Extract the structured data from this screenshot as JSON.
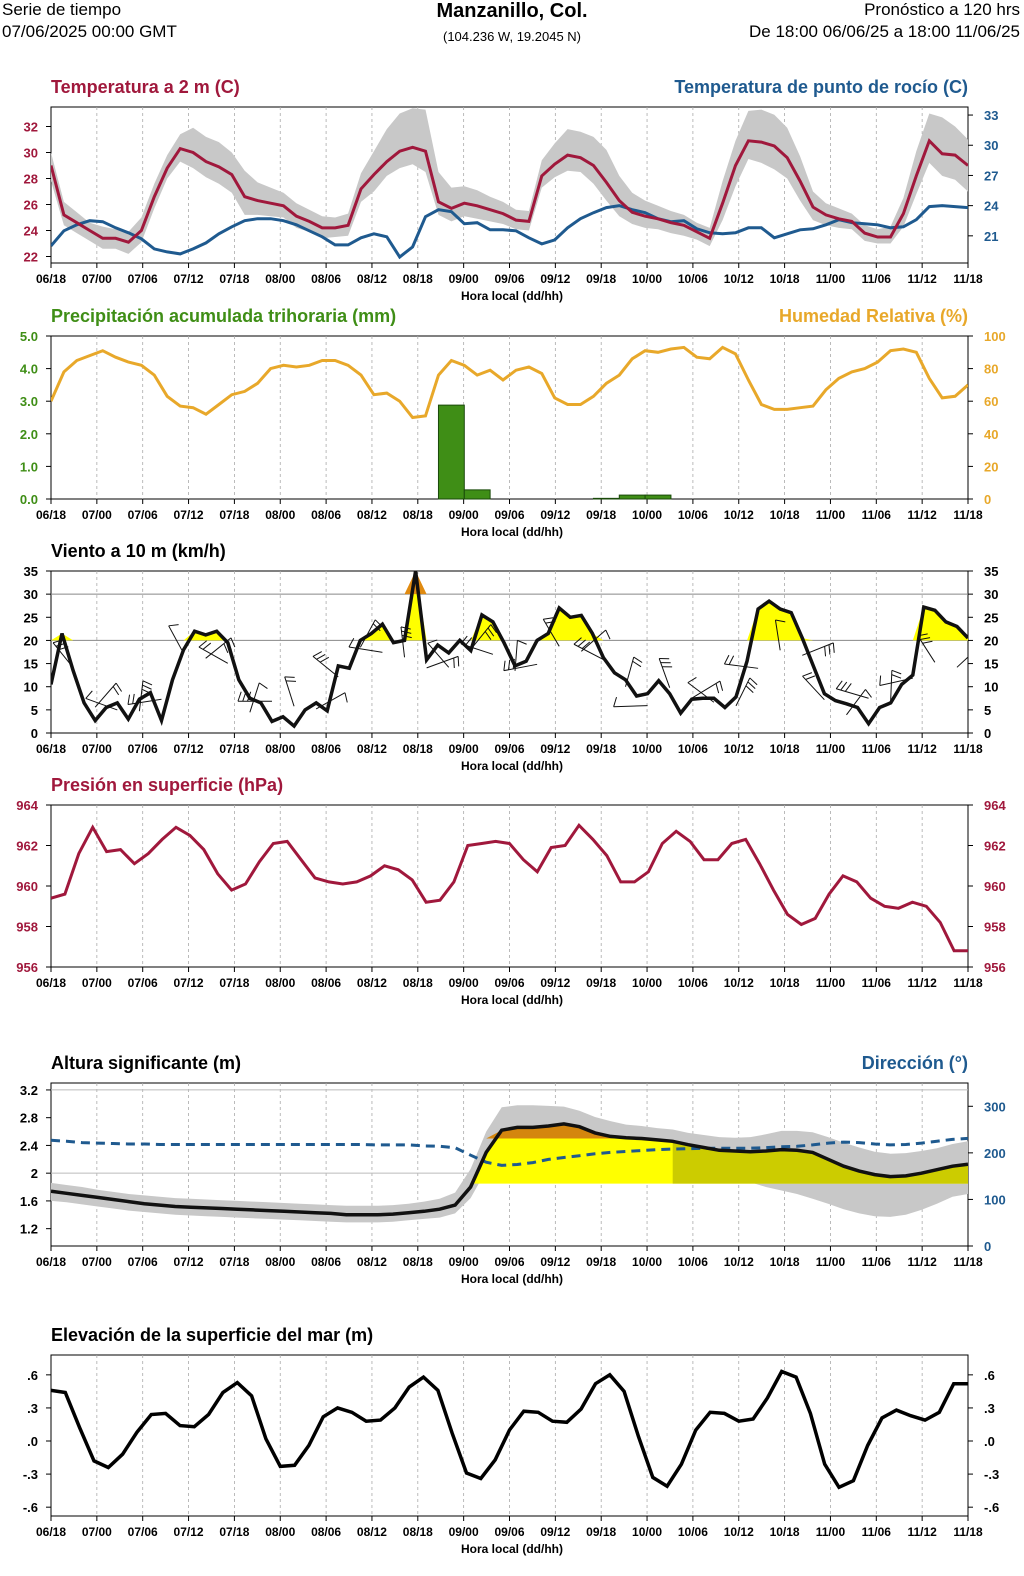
{
  "header": {
    "left_line1": "Serie de tiempo",
    "left_line2": "07/06/2025 00:00 GMT",
    "title": "Manzanillo, Col.",
    "coords": "(104.236 W, 19.2045 N)",
    "right_line1": "Pronóstico a 120 hrs",
    "right_line2": "De 18:00 06/06/25 a 18:00 11/06/25"
  },
  "x_axis": {
    "label": "Hora local (dd/hh)",
    "ticks": [
      "06/18",
      "07/00",
      "07/06",
      "07/12",
      "07/18",
      "08/00",
      "08/06",
      "08/12",
      "08/18",
      "09/00",
      "09/06",
      "09/12",
      "09/18",
      "10/00",
      "10/06",
      "10/12",
      "10/18",
      "11/00",
      "11/06",
      "11/12",
      "11/18"
    ]
  },
  "colors": {
    "temp": "#a0183c",
    "dew": "#1f5a8f",
    "precip": "#3f8e16",
    "rh": "#e8a82a",
    "wind": "#111111",
    "wind_fill": "#ffff00",
    "wind_fill_high": "#e08a10",
    "pressure": "#a0183c",
    "wave": "#111111",
    "wave_dir": "#1f5a8f",
    "band": "#c8c8c8",
    "wave_fill": "#ffff00",
    "wave_fill_high": "#d4860e",
    "wave_fill_olive": "#cccc00"
  },
  "chart_data": [
    {
      "id": "temp",
      "type": "line",
      "title_left": "Temperatura a 2 m (C)",
      "title_right": "Temperatura de punto de rocío (C)",
      "ylim": [
        21.5,
        33.5
      ],
      "yticks": [
        22,
        24,
        26,
        28,
        30,
        32
      ],
      "ylim_right": [
        18.3,
        33.8
      ],
      "yticks_right": [
        21,
        24,
        27,
        30,
        33
      ],
      "series": [
        {
          "name": "Temperatura a 2 m",
          "axis": "left",
          "values": [
            29,
            25.2,
            24.6,
            24,
            23.4,
            23.4,
            23.1,
            24,
            26.6,
            28.8,
            30.3,
            30,
            29.3,
            28.9,
            28.3,
            26.6,
            26.3,
            26.1,
            25.9,
            25.1,
            24.7,
            24.2,
            24.2,
            24.4,
            27.2,
            28.3,
            29.3,
            30.1,
            30.4,
            30.1,
            26.2,
            25.7,
            26.1,
            25.9,
            25.6,
            25.3,
            24.8,
            24.7,
            28.2,
            29.1,
            29.8,
            29.6,
            29,
            27.7,
            26.3,
            25.4,
            25.1,
            24.9,
            24.6,
            24.4,
            23.9,
            23.4,
            26.1,
            29,
            30.9,
            30.8,
            30.5,
            29.6,
            27.8,
            25.8,
            25.2,
            24.9,
            24.7,
            23.8,
            23.5,
            23.5,
            25.3,
            28.2,
            30.9,
            29.9,
            29.8,
            29
          ]
        },
        {
          "name": "Temperatura de punto de rocío",
          "axis": "right",
          "values": [
            20,
            21.5,
            22.1,
            22.5,
            22.4,
            21.8,
            21.3,
            20.7,
            19.7,
            19.4,
            19.2,
            19.7,
            20.3,
            21.2,
            21.9,
            22.5,
            22.7,
            22.7,
            22.5,
            22.1,
            21.5,
            20.9,
            20.1,
            20.1,
            20.8,
            21.2,
            20.9,
            18.9,
            19.9,
            22.9,
            23.6,
            23.4,
            22.2,
            22.3,
            21.6,
            21.6,
            21.5,
            20.8,
            20.2,
            20.6,
            21.8,
            22.7,
            23.3,
            23.8,
            24,
            23.6,
            23.3,
            22.7,
            22.4,
            22.5,
            21.7,
            21.3,
            21.2,
            21.3,
            21.8,
            21.8,
            20.8,
            21.2,
            21.6,
            21.7,
            22.1,
            22.6,
            22.3,
            22.2,
            22.1,
            21.8,
            21.9,
            22.6,
            23.9,
            24,
            23.9,
            23.8
          ]
        }
      ],
      "band": {
        "upper": [
          30,
          26.2,
          25.4,
          24.6,
          24.3,
          24.1,
          23.9,
          25,
          27.6,
          29.8,
          31.4,
          31.9,
          31.2,
          30.8,
          30,
          28.6,
          27.7,
          27.3,
          26.9,
          26.1,
          25.6,
          25.1,
          25,
          25.3,
          28.4,
          30.1,
          31.8,
          33,
          33.4,
          33.3,
          28.5,
          27.3,
          27.4,
          27.1,
          26.6,
          26.2,
          25.6,
          25.5,
          29.4,
          30.7,
          31.8,
          31.6,
          31.2,
          30.2,
          28.2,
          26.9,
          26.3,
          25.9,
          25.5,
          25.2,
          24.6,
          24.2,
          27.8,
          30.9,
          33.2,
          33.3,
          32.9,
          31.9,
          29.7,
          27,
          26.1,
          25.7,
          25.3,
          24.4,
          24.1,
          24.3,
          26.5,
          30.1,
          33,
          32.7,
          32,
          31
        ],
        "lower": [
          27.8,
          24.4,
          23.8,
          23.2,
          22.6,
          22.6,
          22.2,
          23.1,
          25.7,
          28,
          29.3,
          28.8,
          28.1,
          27.6,
          26.9,
          25.2,
          25.2,
          25.1,
          25,
          24.2,
          23.9,
          23.4,
          23.5,
          23.6,
          26.2,
          27,
          28.2,
          28.8,
          29.1,
          28.5,
          25.2,
          24.7,
          25.1,
          24.9,
          24.7,
          24.5,
          24.1,
          24,
          27.3,
          28.1,
          28.6,
          28.5,
          27.6,
          26.3,
          25.1,
          24.5,
          24.2,
          24.1,
          23.8,
          23.6,
          23.3,
          22.8,
          24.8,
          27.4,
          29.5,
          29.2,
          28.7,
          28,
          26.3,
          24.8,
          24.4,
          24.2,
          24.1,
          23.2,
          23,
          23,
          24.3,
          26.8,
          29.2,
          28.2,
          27.9,
          27
        ]
      }
    },
    {
      "id": "precip",
      "type": "bar",
      "title_left": "Precipitación acumulada trihoraria (mm)",
      "title_right": "Humedad Relativa (%)",
      "ylim": [
        0,
        5
      ],
      "yticks": [
        "0.0",
        "1.0",
        "2.0",
        "3.0",
        "4.0",
        "5.0"
      ],
      "ylim_right": [
        0,
        100
      ],
      "yticks_right": [
        0,
        20,
        40,
        60,
        80,
        100
      ],
      "bars": [
        {
          "start_index": 30,
          "end_index": 32,
          "value": 2.88
        },
        {
          "start_index": 32,
          "end_index": 34,
          "value": 0.28
        },
        {
          "start_index": 42,
          "end_index": 44,
          "value": 0.02
        },
        {
          "start_index": 44,
          "end_index": 46,
          "value": 0.12
        },
        {
          "start_index": 46,
          "end_index": 48,
          "value": 0.12
        }
      ],
      "rh_values": [
        60,
        78,
        85,
        88,
        91,
        87,
        84,
        82,
        76,
        63,
        57,
        56,
        52,
        58,
        64,
        66,
        71,
        80,
        82,
        81,
        82,
        85,
        85,
        82,
        76,
        64,
        65,
        60,
        50,
        51,
        76,
        85,
        82,
        76,
        79,
        73,
        79,
        81,
        77,
        62,
        58,
        58,
        63,
        71,
        76,
        86,
        91,
        90,
        92,
        93,
        87,
        86,
        93,
        89,
        73,
        58,
        55,
        55,
        56,
        57,
        67,
        74,
        78,
        80,
        84,
        91,
        92,
        90,
        74,
        62,
        63,
        70
      ]
    },
    {
      "id": "wind",
      "type": "line",
      "title_left": "Viento a 10 m (km/h)",
      "ylim": [
        0,
        35
      ],
      "yticks": [
        0,
        5,
        10,
        15,
        20,
        25,
        30,
        35
      ],
      "threshold": 20,
      "threshold_high": 30,
      "values": [
        10.5,
        21.5,
        13.5,
        6.5,
        2.7,
        5.5,
        6.5,
        3,
        7.3,
        8.7,
        2.7,
        11.5,
        18,
        22,
        21.2,
        22,
        19.5,
        11.5,
        7.5,
        6.5,
        2.5,
        3.5,
        1.5,
        5,
        6.5,
        4.8,
        14.5,
        14,
        20,
        21.5,
        23.5,
        19.5,
        20,
        35,
        15.8,
        19,
        17.3,
        20,
        17.8,
        25.5,
        24,
        19.5,
        14.5,
        15.5,
        20,
        21.5,
        27,
        25,
        25.4,
        21.5,
        16.3,
        13,
        11.5,
        8,
        8.5,
        11.3,
        8.5,
        4.3,
        7.3,
        7.5,
        7.5,
        5.5,
        7.8,
        15.5,
        26.8,
        28.5,
        26.8,
        26,
        20.5,
        14.5,
        8.5,
        7,
        6.3,
        5.5,
        2,
        5.5,
        6.5,
        10.5,
        12.5,
        27.2,
        26.5,
        24,
        23,
        20.5
      ],
      "barbs_shown": true
    },
    {
      "id": "pressure",
      "type": "line",
      "title_left": "Presión en superficie (hPa)",
      "ylim": [
        956,
        964
      ],
      "yticks": [
        956,
        958,
        960,
        962,
        964
      ],
      "values": [
        959.4,
        959.6,
        961.6,
        962.9,
        961.7,
        961.8,
        961.1,
        961.6,
        962.3,
        962.9,
        962.5,
        961.8,
        960.6,
        959.8,
        960.1,
        961.2,
        962.1,
        962.2,
        961.3,
        960.4,
        960.2,
        960.1,
        960.2,
        960.5,
        961,
        960.8,
        960.3,
        959.2,
        959.3,
        960.2,
        962,
        962.1,
        962.2,
        962.1,
        961.3,
        960.7,
        961.9,
        962,
        963,
        962.3,
        961.5,
        960.2,
        960.2,
        960.7,
        962.1,
        962.7,
        962.2,
        961.3,
        961.3,
        962.1,
        962.3,
        961.1,
        959.8,
        958.6,
        958.1,
        958.4,
        959.6,
        960.5,
        960.2,
        959.4,
        959,
        958.9,
        959.2,
        959,
        958.2,
        956.8,
        956.8
      ]
    },
    {
      "id": "wave",
      "type": "area",
      "title_left": "Altura significante (m)",
      "title_right": "Dirección (°)",
      "ylim": [
        0.95,
        3.3
      ],
      "yticks": [
        "1.2",
        "1.6",
        "2",
        "2.4",
        "2.8",
        "3.2"
      ],
      "ylim_right": [
        0,
        350
      ],
      "yticks_right": [
        0,
        100,
        200,
        300
      ],
      "height_values": [
        1.74,
        1.71,
        1.68,
        1.65,
        1.62,
        1.59,
        1.56,
        1.54,
        1.52,
        1.51,
        1.5,
        1.49,
        1.48,
        1.47,
        1.46,
        1.45,
        1.44,
        1.43,
        1.42,
        1.4,
        1.4,
        1.4,
        1.41,
        1.43,
        1.45,
        1.48,
        1.54,
        1.8,
        2.3,
        2.62,
        2.66,
        2.66,
        2.68,
        2.71,
        2.67,
        2.58,
        2.53,
        2.51,
        2.5,
        2.48,
        2.46,
        2.41,
        2.37,
        2.33,
        2.32,
        2.31,
        2.32,
        2.34,
        2.33,
        2.3,
        2.2,
        2.1,
        2.03,
        1.98,
        1.95,
        1.96,
        2.0,
        2.05,
        2.1,
        2.13
      ],
      "height_upper": [
        1.86,
        1.83,
        1.8,
        1.76,
        1.73,
        1.7,
        1.68,
        1.66,
        1.64,
        1.63,
        1.62,
        1.61,
        1.6,
        1.59,
        1.58,
        1.57,
        1.56,
        1.55,
        1.54,
        1.53,
        1.53,
        1.53,
        1.54,
        1.56,
        1.59,
        1.63,
        1.72,
        2.06,
        2.6,
        2.95,
        2.98,
        2.98,
        2.97,
        2.96,
        2.9,
        2.81,
        2.75,
        2.7,
        2.68,
        2.65,
        2.63,
        2.58,
        2.55,
        2.52,
        2.51,
        2.52,
        2.56,
        2.61,
        2.61,
        2.59,
        2.52,
        2.44,
        2.37,
        2.31,
        2.28,
        2.29,
        2.32,
        2.36,
        2.42,
        2.46
      ],
      "height_lower": [
        1.6,
        1.58,
        1.55,
        1.52,
        1.49,
        1.46,
        1.44,
        1.42,
        1.4,
        1.39,
        1.38,
        1.37,
        1.36,
        1.35,
        1.34,
        1.33,
        1.32,
        1.31,
        1.3,
        1.29,
        1.29,
        1.29,
        1.3,
        1.32,
        1.34,
        1.36,
        1.42,
        1.64,
        2.04,
        2.28,
        2.32,
        2.32,
        2.35,
        2.38,
        2.36,
        2.28,
        2.22,
        2.2,
        2.18,
        2.15,
        2.12,
        2.07,
        2.02,
        1.97,
        1.93,
        1.87,
        1.8,
        1.75,
        1.7,
        1.63,
        1.56,
        1.48,
        1.42,
        1.38,
        1.37,
        1.4,
        1.47,
        1.56,
        1.66,
        1.7
      ],
      "threshold": 1.85,
      "threshold_high": 2.5,
      "direction_values": [
        227,
        225,
        222,
        221,
        220,
        219,
        219,
        218,
        218,
        218,
        218,
        218,
        218,
        218,
        218,
        218,
        218,
        218,
        218,
        218,
        218,
        217,
        217,
        217,
        215,
        214,
        211,
        195,
        180,
        173,
        175,
        179,
        186,
        190,
        194,
        198,
        201,
        203,
        205,
        207,
        208,
        209,
        210,
        210,
        210,
        210,
        211,
        213,
        214,
        217,
        221,
        223,
        222,
        219,
        217,
        218,
        221,
        225,
        229,
        231
      ]
    },
    {
      "id": "ssh",
      "type": "line",
      "title_left": "Elevación de la superficie del mar (m)",
      "ylim": [
        -0.68,
        0.78
      ],
      "yticks": [
        ".6",
        ".3",
        ".0",
        "-.3",
        "-.6"
      ],
      "ytick_values": [
        0.6,
        0.3,
        0.0,
        -0.3,
        -0.6
      ],
      "values": [
        0.46,
        0.44,
        0.12,
        -0.18,
        -0.24,
        -0.12,
        0.08,
        0.24,
        0.25,
        0.14,
        0.13,
        0.24,
        0.44,
        0.53,
        0.41,
        0.02,
        -0.23,
        -0.22,
        -0.04,
        0.22,
        0.3,
        0.26,
        0.18,
        0.19,
        0.3,
        0.49,
        0.58,
        0.46,
        0.07,
        -0.29,
        -0.34,
        -0.17,
        0.1,
        0.27,
        0.26,
        0.18,
        0.17,
        0.29,
        0.52,
        0.6,
        0.45,
        0.04,
        -0.33,
        -0.41,
        -0.21,
        0.1,
        0.26,
        0.25,
        0.18,
        0.2,
        0.39,
        0.63,
        0.58,
        0.25,
        -0.21,
        -0.42,
        -0.36,
        -0.04,
        0.21,
        0.28,
        0.23,
        0.19,
        0.26,
        0.52,
        0.52
      ]
    }
  ]
}
